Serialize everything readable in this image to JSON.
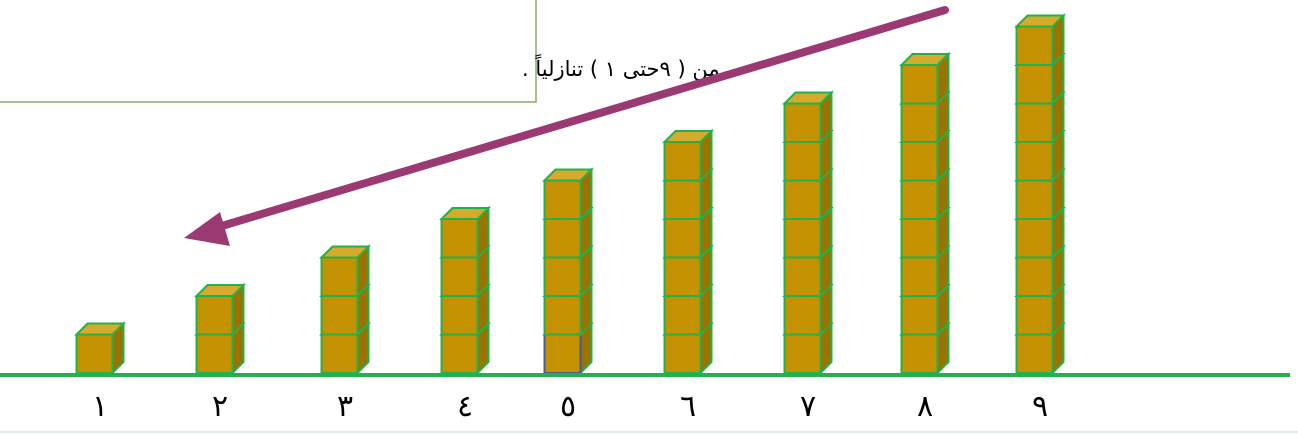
{
  "note_box": {
    "text": "من ( ٩حتى ١ ) تنازلياً ."
  },
  "columns": [
    {
      "label": "١",
      "cubes": 1
    },
    {
      "label": "٢",
      "cubes": 2
    },
    {
      "label": "٣",
      "cubes": 3
    },
    {
      "label": "٤",
      "cubes": 4
    },
    {
      "label": "٥",
      "cubes": 5
    },
    {
      "label": "٦",
      "cubes": 6
    },
    {
      "label": "٧",
      "cubes": 7
    },
    {
      "label": "٨",
      "cubes": 8
    },
    {
      "label": "٩",
      "cubes": 9
    }
  ]
}
